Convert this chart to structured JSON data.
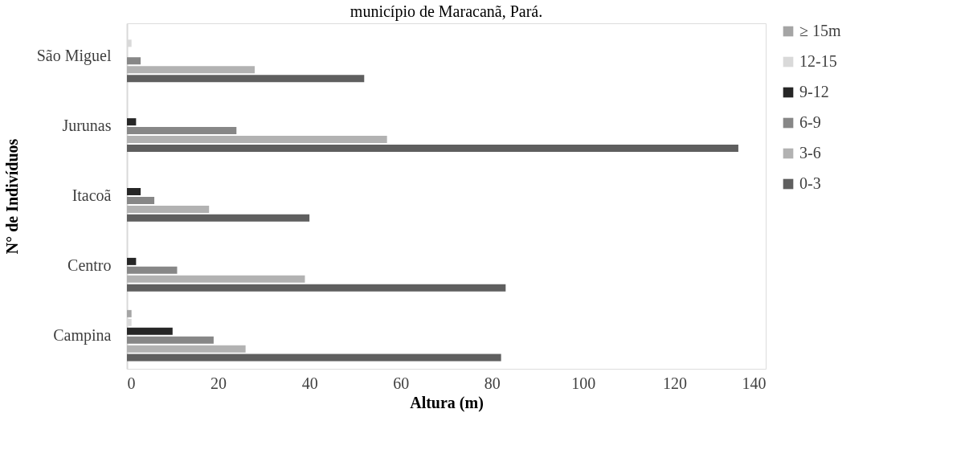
{
  "chart_data": {
    "type": "bar",
    "orientation": "horizontal",
    "title": "município de Maracanã, Pará.",
    "xlabel": "Altura (m)",
    "ylabel": "N° de Indivíduos",
    "categories": [
      "São Miguel",
      "Jurunas",
      "Itacoã",
      "Centro",
      "Campina"
    ],
    "series": [
      {
        "name": "≥ 15m",
        "color": "#a5a5a5",
        "values": [
          0,
          0,
          0,
          0,
          1
        ]
      },
      {
        "name": "12-15",
        "color": "#d9d9d9",
        "values": [
          1,
          0,
          0,
          0,
          1
        ]
      },
      {
        "name": "9-12",
        "color": "#262626",
        "values": [
          0,
          2,
          3,
          2,
          10
        ]
      },
      {
        "name": "6-9",
        "color": "#878787",
        "values": [
          3,
          24,
          6,
          11,
          19
        ]
      },
      {
        "name": "3-6",
        "color": "#b2b2b2",
        "values": [
          28,
          57,
          18,
          39,
          26
        ]
      },
      {
        "name": "0-3",
        "color": "#5f5f5f",
        "values": [
          52,
          134,
          40,
          83,
          82
        ]
      }
    ],
    "xlim": [
      0,
      140
    ],
    "xticks": [
      0,
      20,
      40,
      60,
      80,
      100,
      120,
      140
    ],
    "grid": false,
    "legend": "right"
  }
}
